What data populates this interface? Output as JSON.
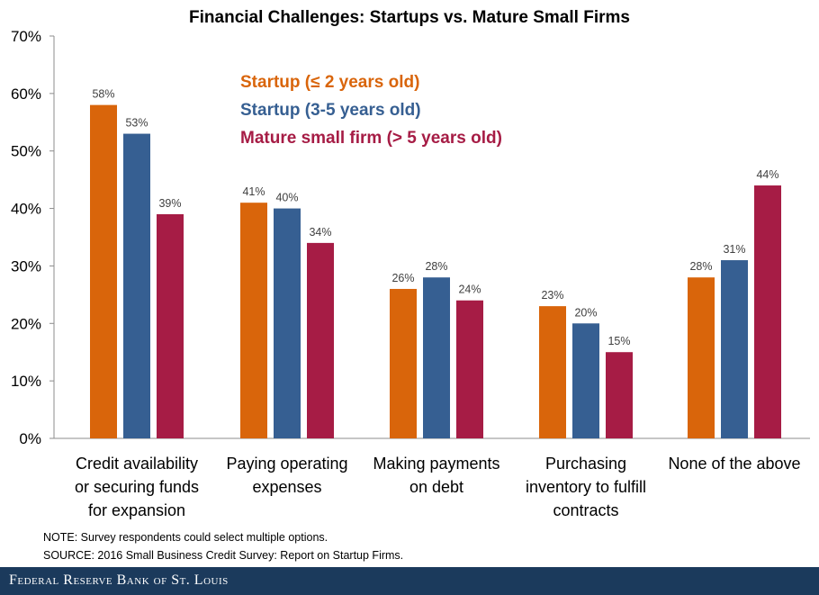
{
  "chart_data": {
    "type": "bar",
    "title": "Financial Challenges: Startups vs. Mature Small Firms",
    "categories": [
      [
        "Credit availability",
        "or securing funds",
        "for expansion"
      ],
      [
        "Paying operating",
        "expenses"
      ],
      [
        "Making payments",
        "on debt"
      ],
      [
        "Purchasing",
        "inventory to fulfill",
        "contracts"
      ],
      [
        "None of the above"
      ]
    ],
    "series": [
      {
        "name": "Startup (≤ 2 years old)",
        "color": "#d9650b",
        "values": [
          58,
          41,
          26,
          23,
          28
        ],
        "labels": [
          "58%",
          "41%",
          "26%",
          "23%",
          "28%"
        ]
      },
      {
        "name": "Startup (3-5 years old)",
        "color": "#365f92",
        "values": [
          53,
          40,
          28,
          20,
          31
        ],
        "labels": [
          "53%",
          "40%",
          "28%",
          "20%",
          "31%"
        ]
      },
      {
        "name": "Mature small firm (> 5 years old)",
        "color": "#a61c45",
        "values": [
          39,
          34,
          24,
          15,
          44
        ],
        "labels": [
          "39%",
          "34%",
          "24%",
          "15%",
          "44%"
        ]
      }
    ],
    "yticks": [
      0,
      10,
      20,
      30,
      40,
      50,
      60,
      70
    ],
    "ytick_labels": [
      "0%",
      "10%",
      "20%",
      "30%",
      "40%",
      "50%",
      "60%",
      "70%"
    ],
    "ylim": [
      0,
      70
    ],
    "grid": false,
    "legend_position": "top-left, inside plot"
  },
  "notes": {
    "note": "NOTE: Survey respondents could select multiple options.",
    "source": "SOURCE: 2016 Small Business Credit Survey: Report on Startup Firms."
  },
  "footer": {
    "org": "Federal Reserve Bank of St. Louis"
  }
}
